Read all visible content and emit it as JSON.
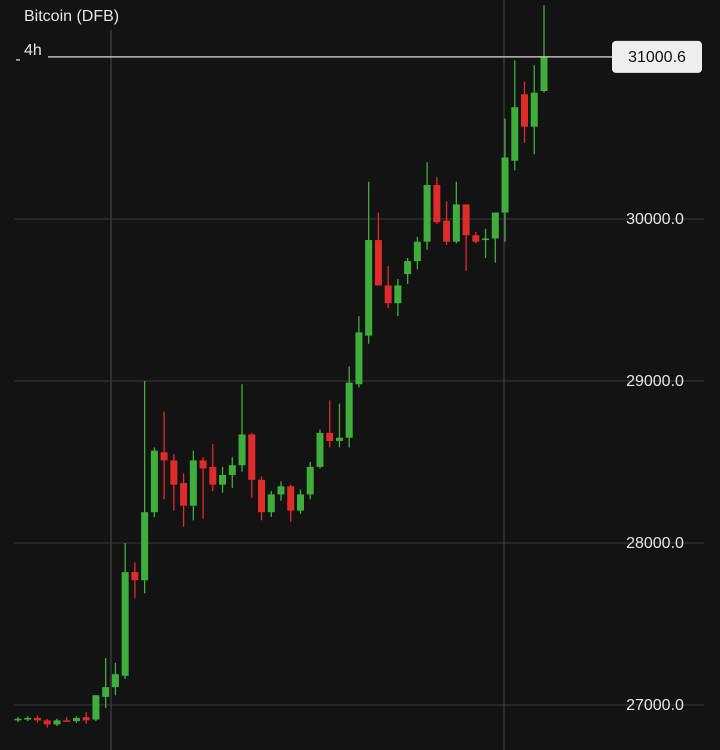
{
  "chart_data": {
    "type": "candlestick",
    "title": "Bitcoin (DFB)",
    "interval": "4h",
    "up_color": "#3fae3c",
    "down_color": "#e02b2b",
    "grid": true,
    "last_price": 31000.6,
    "ylim": [
      26722,
      31352
    ],
    "yticks": [
      {
        "value": 27000,
        "label": "27000.0"
      },
      {
        "value": 28000,
        "label": "28000.0"
      },
      {
        "value": 29000,
        "label": "29000.0"
      },
      {
        "value": 30000,
        "label": "30000.0"
      }
    ],
    "open": [
      26905,
      26910,
      26920,
      26905,
      26880,
      26905,
      26900,
      26925,
      26910,
      27050,
      27110,
      27180,
      27820,
      27770,
      28190,
      28560,
      28510,
      28370,
      28230,
      28510,
      28470,
      28360,
      28420,
      28480,
      28670,
      28390,
      28190,
      28300,
      28350,
      28200,
      28300,
      28470,
      28680,
      28630,
      28650,
      28980,
      29280,
      29870,
      29590,
      29480,
      29660,
      29740,
      29860,
      30210,
      29990,
      29860,
      30090,
      29900,
      29870,
      29880,
      30040,
      30360,
      30770,
      30570,
      30790
    ],
    "high": [
      26925,
      26930,
      26935,
      26915,
      26915,
      26925,
      26930,
      26955,
      27060,
      27290,
      27260,
      28000,
      27880,
      29000,
      28590,
      28810,
      28550,
      28430,
      28570,
      28530,
      28610,
      28470,
      28530,
      28980,
      28680,
      28410,
      28320,
      28380,
      28360,
      28330,
      28500,
      28700,
      28880,
      28860,
      29090,
      29400,
      30230,
      30040,
      29710,
      29630,
      29760,
      29890,
      30350,
      30260,
      30110,
      30230,
      30090,
      29920,
      29940,
      30040,
      30620,
      30980,
      30850,
      30950,
      31320
    ],
    "low": [
      26895,
      26900,
      26890,
      26860,
      26870,
      26895,
      26890,
      26885,
      26900,
      26980,
      27060,
      27160,
      27660,
      27690,
      28160,
      28270,
      28200,
      28100,
      28140,
      28150,
      28320,
      28310,
      28340,
      28440,
      28280,
      28140,
      28160,
      28260,
      28130,
      28180,
      28270,
      28460,
      28590,
      28590,
      28590,
      28960,
      29230,
      29600,
      29450,
      29400,
      29600,
      29690,
      29810,
      29970,
      29840,
      29850,
      29680,
      29850,
      29760,
      29730,
      29860,
      30300,
      30470,
      30400,
      30780
    ],
    "close": [
      26915,
      26920,
      26905,
      26880,
      26905,
      26900,
      26920,
      26905,
      27060,
      27110,
      27190,
      27820,
      27770,
      28190,
      28570,
      28510,
      28360,
      28230,
      28510,
      28460,
      28360,
      28420,
      28480,
      28670,
      28390,
      28190,
      28300,
      28350,
      28200,
      28300,
      28470,
      28680,
      28630,
      28650,
      28990,
      29300,
      29870,
      29590,
      29480,
      29590,
      29740,
      29860,
      30210,
      29980,
      29860,
      30090,
      29900,
      29860,
      29880,
      30040,
      30380,
      30690,
      30570,
      30780,
      31000.6
    ]
  }
}
